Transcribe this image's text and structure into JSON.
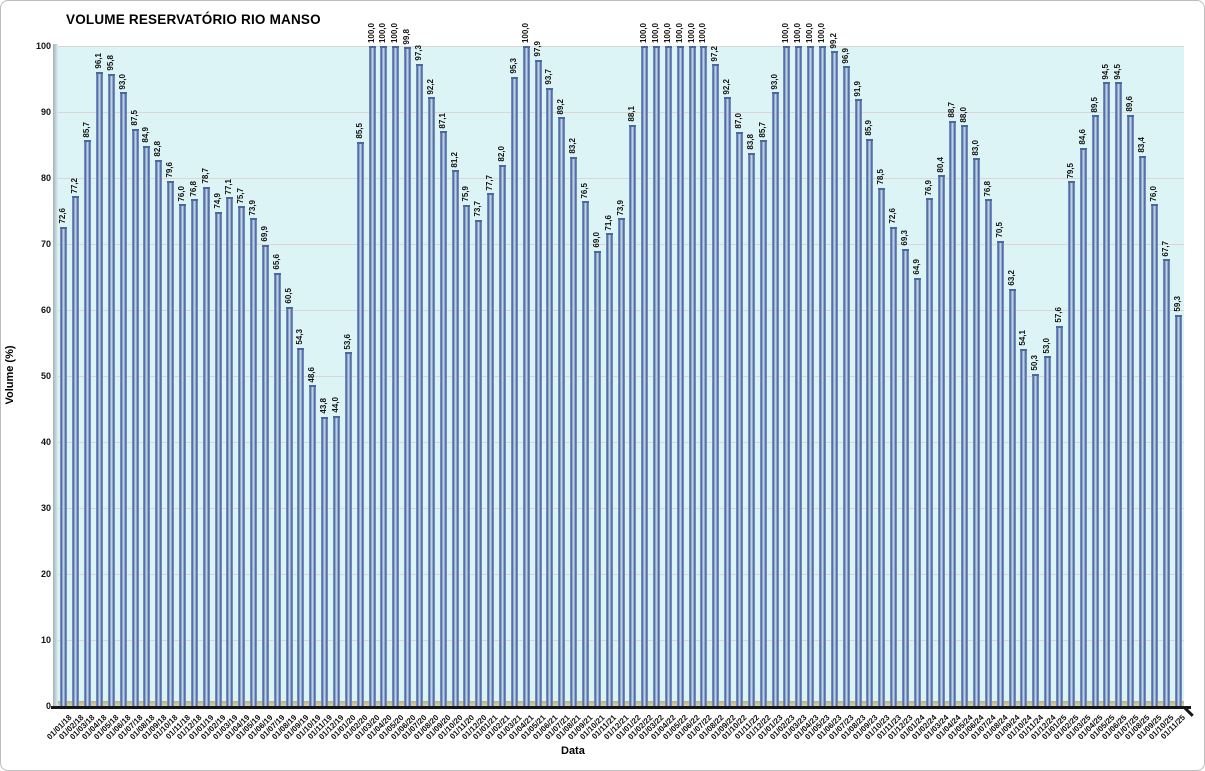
{
  "title": "VOLUME RESERVATÓRIO RIO MANSO",
  "chart_data": {
    "type": "bar",
    "title": "VOLUME RESERVATÓRIO RIO MANSO",
    "xlabel": "Data",
    "ylabel": "Volume (%)",
    "ylim": [
      0,
      100
    ],
    "yticks": [
      0,
      10,
      20,
      30,
      40,
      50,
      60,
      70,
      80,
      90,
      100
    ],
    "grid": true,
    "legend": "none",
    "categories": [
      "01/01/18",
      "01/02/18",
      "01/03/18",
      "01/04/18",
      "01/05/18",
      "01/06/18",
      "01/07/18",
      "01/08/18",
      "01/09/18",
      "01/10/18",
      "01/11/18",
      "01/12/18",
      "01/01/19",
      "01/02/19",
      "01/03/19",
      "01/04/19",
      "01/05/19",
      "01/06/19",
      "01/07/19",
      "01/08/19",
      "01/09/19",
      "01/10/19",
      "01/11/19",
      "01/12/19",
      "01/01/20",
      "01/02/20",
      "01/03/20",
      "01/04/20",
      "01/05/20",
      "01/06/20",
      "01/07/20",
      "01/08/20",
      "01/09/20",
      "01/10/20",
      "01/11/20",
      "01/12/20",
      "01/01/21",
      "01/02/21",
      "01/03/21",
      "01/04/21",
      "01/05/21",
      "01/06/21",
      "01/07/21",
      "01/08/21",
      "01/09/21",
      "01/10/21",
      "01/11/21",
      "01/12/21",
      "01/01/22",
      "01/02/22",
      "01/03/22",
      "01/04/22",
      "01/05/22",
      "01/06/22",
      "01/07/22",
      "01/08/22",
      "01/09/22",
      "01/10/22",
      "01/11/22",
      "01/12/22",
      "01/01/23",
      "01/02/23",
      "01/03/23",
      "01/04/23",
      "01/05/23",
      "01/06/23",
      "01/07/23",
      "01/08/23",
      "01/09/23",
      "01/10/23",
      "01/11/23",
      "01/12/23",
      "01/01/24",
      "01/02/24",
      "01/03/24",
      "01/04/24",
      "01/05/24",
      "01/06/24",
      "01/07/24",
      "01/08/24",
      "01/09/24",
      "01/10/24",
      "01/11/24",
      "01/12/24",
      "01/01/25",
      "01/02/25",
      "01/03/25",
      "01/04/25",
      "01/05/25",
      "01/06/25",
      "01/07/25",
      "01/08/25",
      "01/09/25",
      "01/10/25",
      "01/11/25"
    ],
    "values": [
      72.6,
      77.2,
      85.7,
      96.1,
      95.8,
      93.0,
      87.5,
      84.9,
      82.8,
      79.6,
      76.0,
      76.8,
      78.7,
      74.9,
      77.1,
      75.7,
      73.9,
      69.9,
      65.6,
      60.5,
      54.3,
      48.6,
      43.8,
      44.0,
      53.6,
      85.5,
      100.0,
      100.0,
      100.0,
      99.8,
      97.3,
      92.2,
      87.1,
      81.2,
      75.9,
      73.7,
      77.7,
      82.0,
      95.3,
      100.0,
      97.9,
      93.7,
      89.2,
      83.2,
      76.5,
      69.0,
      71.6,
      73.9,
      88.1,
      100.0,
      100.0,
      100.0,
      100.0,
      100.0,
      100.0,
      97.2,
      92.2,
      87.0,
      83.8,
      85.7,
      93.0,
      100.0,
      100.0,
      100.0,
      100.0,
      99.2,
      96.9,
      91.9,
      85.9,
      78.5,
      72.6,
      69.3,
      64.9,
      76.9,
      80.4,
      88.7,
      88.0,
      83.0,
      76.8,
      70.5,
      63.2,
      54.1,
      50.3,
      53.0,
      57.6,
      79.5,
      84.6,
      89.5,
      94.5,
      94.5,
      89.6,
      83.4,
      76.0,
      67.7,
      59.3
    ],
    "decimal_separator": ",",
    "colors": {
      "bar_edge": "#45659e",
      "bar_center": "#cfdef0",
      "bar_outer": "#8fa7ce",
      "plot_bg": "#ddf4f7",
      "gridline": "#ddd5d5",
      "floor": "#d9d1a6",
      "wall": "#b4c4c7",
      "axis": "#161616",
      "text": "#111111"
    }
  }
}
